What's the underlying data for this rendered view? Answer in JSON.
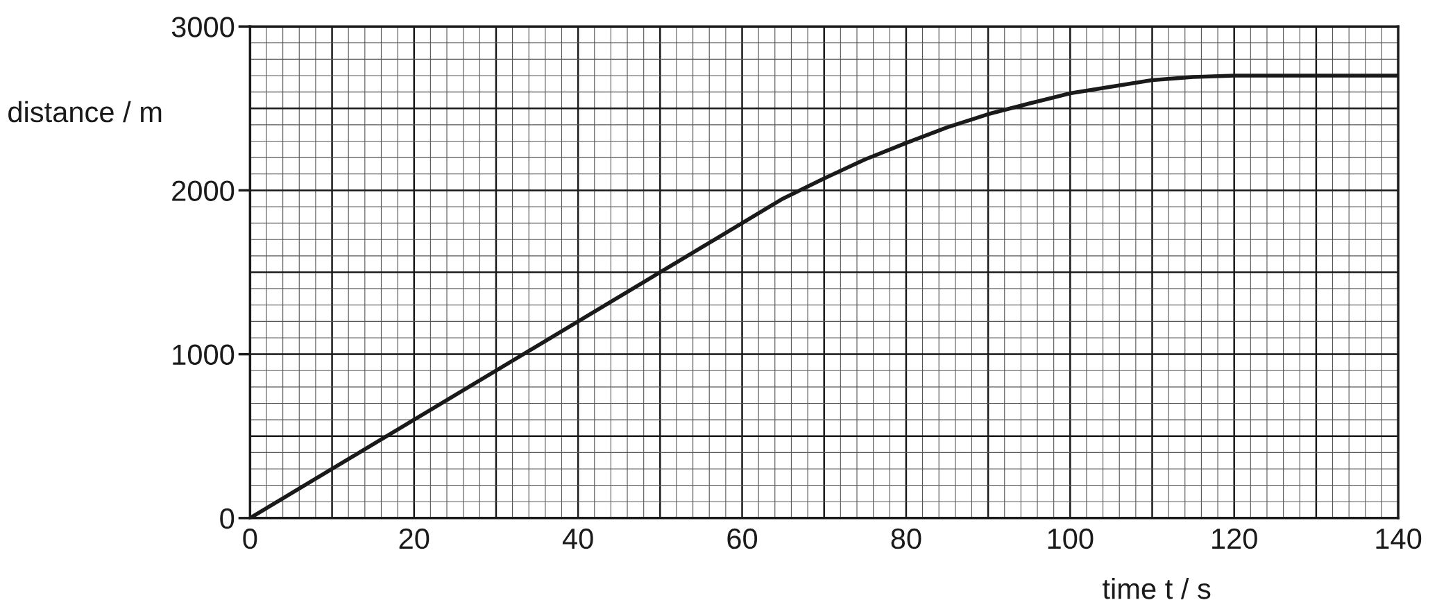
{
  "chart_data": {
    "type": "line",
    "xlabel": "time t / s",
    "ylabel": "distance / m",
    "x": [
      0,
      60,
      65,
      70,
      75,
      80,
      85,
      90,
      95,
      100,
      105,
      110,
      115,
      120,
      140
    ],
    "series": [
      {
        "color": "#1a1a1a",
        "values": [
          0,
          1800,
          1950,
          2073,
          2189,
          2289,
          2384,
          2465,
          2530,
          2592,
          2632,
          2673,
          2692,
          2700,
          2700
        ]
      }
    ],
    "xlim": [
      0,
      140
    ],
    "xticks": [
      0,
      20,
      40,
      60,
      80,
      100,
      120,
      140
    ],
    "ylim": [
      0,
      3000
    ],
    "yticks": [
      0,
      1000,
      2000,
      3000
    ],
    "grid": true,
    "marker": "none",
    "line_style": "solid"
  }
}
